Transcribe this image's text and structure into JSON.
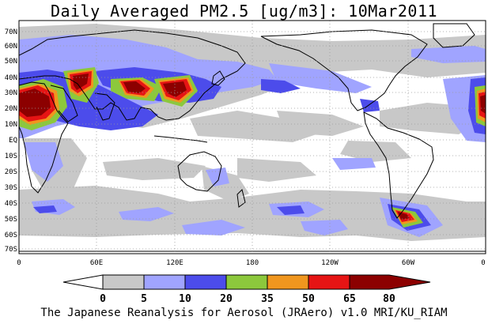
{
  "header": {
    "title": "Daily Averaged PM2.5 [ug/m3]: 10Mar2011"
  },
  "map": {
    "variable": "PM2.5",
    "units": "ug/m3",
    "date": "10Mar2011",
    "lat_labels": [
      "70N",
      "60N",
      "50N",
      "40N",
      "30N",
      "20N",
      "10N",
      "EQ",
      "10S",
      "20S",
      "30S",
      "40S",
      "50S",
      "60S",
      "70S"
    ],
    "lon_labels": [
      "0",
      "60E",
      "120E",
      "180",
      "120W",
      "60W",
      "0"
    ],
    "grid": true,
    "land_outline_color": "#000000",
    "ocean_color": "#ffffff"
  },
  "legend": {
    "breaks": [
      "0",
      "5",
      "10",
      "20",
      "35",
      "50",
      "65",
      "80"
    ],
    "colors": [
      "#ffffff",
      "#c8c8c8",
      "#a0a4ff",
      "#4c4ceb",
      "#8cc83c",
      "#f0961e",
      "#e61414",
      "#8c0000"
    ]
  },
  "footer": {
    "credit": "The Japanese Reanalysis for Aerosol (JRAero) v1.0 MRI/KU_RIAM"
  }
}
